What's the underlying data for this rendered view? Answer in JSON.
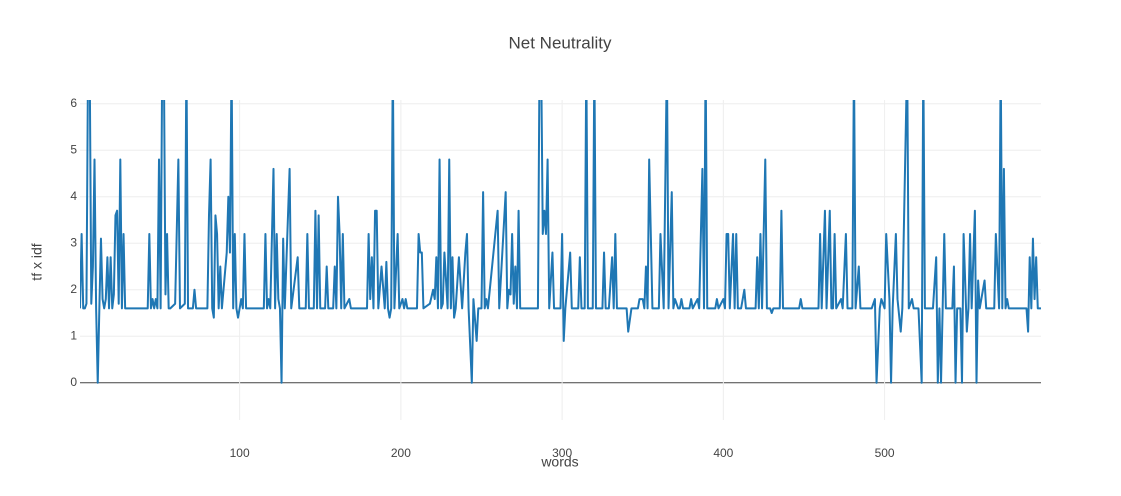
{
  "chart_data": {
    "type": "line",
    "title": "Net Neutrality",
    "x_label": "words",
    "y_label": "tf x idf",
    "color": "#1f77b4",
    "grid": true,
    "xlim": [
      1,
      597
    ],
    "ylim": [
      -0.8,
      6.08
    ],
    "xticks": [
      100,
      200,
      300,
      400,
      500
    ],
    "yticks": [
      0,
      1,
      2,
      3,
      4,
      5,
      6
    ],
    "x": [
      1,
      2,
      3,
      4,
      5,
      6,
      7,
      8,
      9,
      10,
      11,
      12,
      13,
      14,
      15,
      16,
      17,
      18,
      19,
      20,
      21,
      22,
      23,
      24,
      25,
      26,
      27,
      28,
      29,
      30,
      43,
      44,
      45,
      46,
      47,
      48,
      49,
      50,
      51,
      52,
      53,
      54,
      55,
      56,
      57,
      60,
      62,
      63,
      66,
      67,
      68,
      71,
      72,
      73,
      80,
      81,
      82,
      83,
      84,
      85,
      86,
      87,
      88,
      89,
      92,
      93,
      94,
      95,
      96,
      97,
      98,
      99,
      100,
      101,
      102,
      103,
      104,
      115,
      116,
      117,
      118,
      119,
      121,
      122,
      123,
      124,
      125,
      126,
      127,
      128,
      131,
      132,
      136,
      137,
      141,
      142,
      143,
      146,
      147,
      148,
      149,
      150,
      153,
      154,
      155,
      158,
      159,
      160,
      161,
      162,
      163,
      164,
      165,
      168,
      169,
      179,
      180,
      181,
      182,
      183,
      184,
      185,
      186,
      188,
      190,
      191,
      192,
      193,
      194,
      195,
      196,
      198,
      199,
      201,
      202,
      203,
      204,
      210,
      211,
      212,
      213,
      214,
      218,
      220,
      221,
      222,
      223,
      224,
      225,
      226,
      227,
      229,
      230,
      231,
      232,
      233,
      234,
      236,
      238,
      240,
      241,
      242,
      244,
      245,
      247,
      248,
      250,
      251,
      252,
      253,
      254,
      260,
      261,
      265,
      266,
      267,
      268,
      269,
      270,
      271,
      272,
      273,
      274,
      285,
      286,
      287,
      288,
      289,
      290,
      291,
      292,
      294,
      295,
      299,
      300,
      301,
      302,
      305,
      306,
      310,
      311,
      312,
      314,
      315,
      316,
      319,
      320,
      321,
      325,
      326,
      327,
      329,
      331,
      332,
      333,
      334,
      340,
      341,
      343,
      347,
      348,
      350,
      351,
      352,
      353,
      354,
      356,
      360,
      361,
      363,
      365,
      366,
      368,
      369,
      370,
      372,
      373,
      374,
      375,
      379,
      380,
      381,
      384,
      385,
      387,
      388,
      389,
      390,
      395,
      396,
      397,
      400,
      401,
      402,
      403,
      404,
      406,
      407,
      408,
      409,
      411,
      413,
      414,
      420,
      421,
      422,
      423,
      424,
      426,
      427,
      429,
      430,
      431,
      435,
      436,
      437,
      447,
      448,
      449,
      459,
      460,
      461,
      463,
      464,
      466,
      467,
      468,
      469,
      470,
      473,
      474,
      476,
      477,
      480,
      481,
      482,
      484,
      485,
      492,
      494,
      495,
      497,
      498,
      500,
      501,
      503,
      504,
      505,
      507,
      508,
      510,
      511,
      514,
      515,
      517,
      518,
      521,
      523,
      524,
      525,
      530,
      532,
      533,
      534,
      535,
      537,
      538,
      542,
      543,
      544,
      545,
      547,
      548,
      549,
      551,
      552,
      553,
      554,
      556,
      557,
      558,
      559,
      562,
      563,
      568,
      569,
      571,
      572,
      573,
      574,
      575,
      576,
      577,
      588,
      589,
      590,
      591,
      592,
      593,
      594,
      595,
      597
    ],
    "values": [
      1.6,
      3.2,
      1.6,
      1.6,
      1.7,
      7,
      7,
      1.7,
      2.5,
      4.8,
      1.6,
      0,
      1.6,
      3.1,
      1.8,
      1.6,
      1.8,
      2.7,
      1.6,
      2.7,
      1.6,
      1.9,
      3.6,
      3.7,
      1.7,
      4.8,
      1.6,
      3.2,
      1.6,
      1.6,
      1.6,
      3.2,
      1.6,
      1.8,
      1.6,
      1.8,
      1.6,
      4.8,
      1.6,
      7,
      7,
      1.9,
      3.2,
      1.6,
      1.6,
      1.7,
      4.8,
      1.6,
      1.7,
      7,
      1.6,
      1.6,
      2,
      1.6,
      1.6,
      3.6,
      4.8,
      1.6,
      1.4,
      3.6,
      3.2,
      1.6,
      2.5,
      1.6,
      2.8,
      4,
      2.8,
      7,
      1.6,
      3.2,
      1.6,
      1.4,
      1.6,
      1.8,
      1.6,
      3.2,
      1.6,
      1.6,
      3.2,
      1.6,
      1.8,
      1.6,
      4.6,
      1.6,
      3.2,
      1.8,
      1.6,
      0,
      3.1,
      1.6,
      4.6,
      1.6,
      2.7,
      1.6,
      1.6,
      3.2,
      1.6,
      1.6,
      3.7,
      1.6,
      3.6,
      1.6,
      1.6,
      2.5,
      1.6,
      1.6,
      2.5,
      1.6,
      4,
      3.2,
      1.6,
      3.2,
      1.6,
      1.8,
      1.6,
      1.6,
      3.2,
      1.8,
      2.7,
      1.6,
      3.7,
      3.7,
      1.6,
      2.5,
      1.6,
      2.6,
      1.6,
      1.4,
      1.6,
      7,
      1.6,
      3.2,
      1.6,
      1.8,
      1.6,
      1.8,
      1.6,
      1.6,
      3.2,
      2.8,
      2.8,
      1.6,
      1.7,
      2,
      1.8,
      2.7,
      1.6,
      4.8,
      1.6,
      1.7,
      2.8,
      1.6,
      4.8,
      1.6,
      2.7,
      1.4,
      1.6,
      2.7,
      1.6,
      2.8,
      3.2,
      1.6,
      0,
      1.8,
      0.9,
      1.6,
      1.6,
      4.1,
      1.6,
      1.8,
      1.6,
      3.7,
      1.6,
      4.1,
      1.6,
      2,
      1.9,
      3.2,
      1.7,
      2.5,
      1.6,
      3.7,
      1.6,
      1.6,
      7,
      7,
      3.2,
      3.7,
      3.2,
      4.8,
      1.6,
      2.8,
      1.6,
      1.6,
      3.2,
      0.9,
      1.6,
      2.8,
      1.6,
      1.6,
      2.7,
      1.6,
      1.6,
      7,
      1.6,
      1.6,
      7,
      1.6,
      1.6,
      2.8,
      1.6,
      1.6,
      2.7,
      1.6,
      3.2,
      1.6,
      1.6,
      1.1,
      1.6,
      1.6,
      1.8,
      1.8,
      1.6,
      2.5,
      1.6,
      4.8,
      1.6,
      1.6,
      3.2,
      1.6,
      7,
      1.6,
      4.1,
      1.6,
      1.8,
      1.6,
      1.6,
      1.8,
      1.6,
      1.6,
      1.8,
      1.6,
      1.8,
      1.6,
      4.6,
      1.6,
      7,
      1.6,
      1.6,
      1.8,
      1.6,
      1.8,
      1.6,
      3.2,
      3.2,
      1.6,
      3.2,
      1.6,
      3.2,
      1.6,
      1.6,
      2,
      1.6,
      1.6,
      2.7,
      1.6,
      3.2,
      1.6,
      4.8,
      1.6,
      1.6,
      1.5,
      1.6,
      1.6,
      3.7,
      1.6,
      1.6,
      1.8,
      1.6,
      1.6,
      3.2,
      1.6,
      3.7,
      1.6,
      3.7,
      1.6,
      1.6,
      3.2,
      1.6,
      1.8,
      1.6,
      3.2,
      1.6,
      1.6,
      7,
      1.6,
      2.5,
      1.6,
      1.6,
      1.8,
      0,
      1.6,
      1.8,
      1.6,
      3.2,
      1.8,
      0,
      1.6,
      3.2,
      1.8,
      1.1,
      1.6,
      7,
      1.6,
      1.8,
      1.6,
      1.6,
      0,
      7,
      1.6,
      1.6,
      2.7,
      0,
      1.6,
      0,
      3.2,
      1.6,
      1.6,
      2.5,
      0,
      1.6,
      1.6,
      0,
      3.2,
      1.1,
      1.6,
      3.2,
      1.6,
      3.7,
      0,
      2.2,
      1.6,
      2.2,
      1.6,
      1.6,
      3.2,
      1.6,
      7,
      1.6,
      4.6,
      1.6,
      1.8,
      1.6,
      1.6,
      1.1,
      2.7,
      1.6,
      3.1,
      1.8,
      2.7,
      1.6,
      1.6
    ]
  }
}
